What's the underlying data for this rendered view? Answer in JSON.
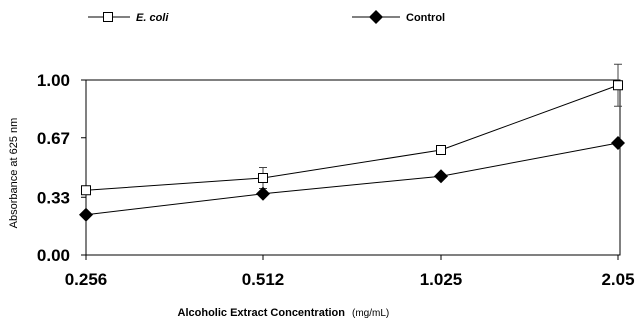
{
  "chart_data": {
    "type": "line",
    "title": "",
    "xlabel": "Alcoholic Extract Concentration",
    "xlabel_unit": "(mg/mL)",
    "ylabel": "Absorbance at 625 nm",
    "categories": [
      "0.256",
      "0.512",
      "1.025",
      "2.05"
    ],
    "y_ticks": [
      "0.00",
      "0.33",
      "0.67",
      "1.00"
    ],
    "ylim": [
      0,
      1.0
    ],
    "grid": false,
    "legend_position": "top",
    "series": [
      {
        "name": "E. coli",
        "marker": "open-square",
        "color": "#000000",
        "values": [
          0.37,
          0.44,
          0.6,
          0.97
        ],
        "error_bars": [
          null,
          0.06,
          null,
          0.12
        ]
      },
      {
        "name": "Control",
        "marker": "filled-diamond",
        "color": "#000000",
        "values": [
          0.23,
          0.35,
          0.45,
          0.64
        ],
        "error_bars": [
          null,
          null,
          null,
          null
        ]
      }
    ]
  }
}
